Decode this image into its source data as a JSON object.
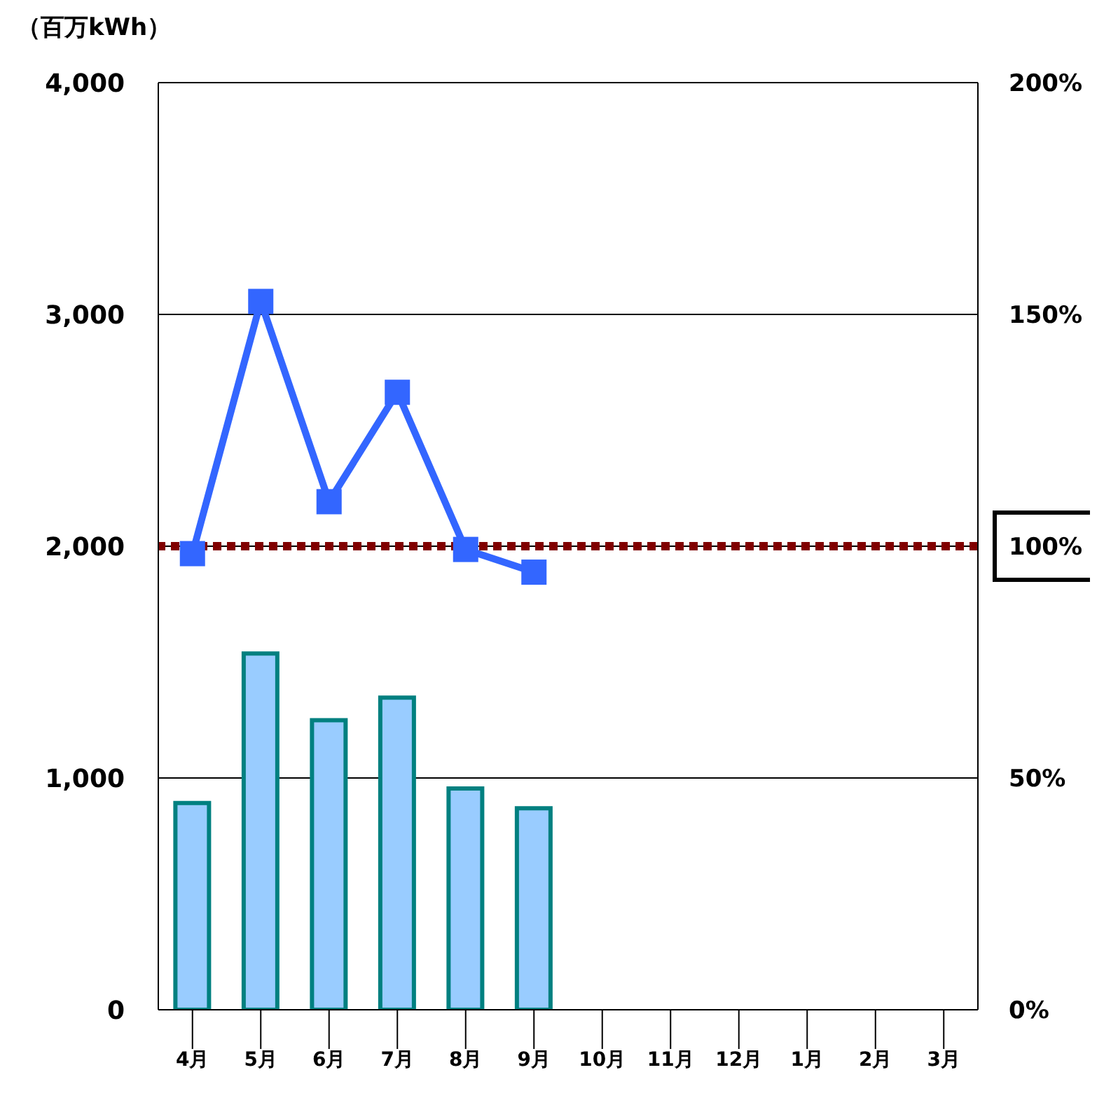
{
  "chart_data": {
    "type": "bar",
    "ylabel": "（百万kWh）",
    "categories": [
      "4月",
      "5月",
      "6月",
      "7月",
      "8月",
      "9月",
      "10月",
      "11月",
      "12月",
      "1月",
      "2月",
      "3月"
    ],
    "series": [
      {
        "color": "#99ccff",
        "values": [
          892,
          1537,
          1249,
          1347,
          955,
          869,
          null,
          null,
          null,
          null,
          null,
          null
        ]
      },
      {
        "type": "line",
        "axis": "y2",
        "color": "#3366ff",
        "values": [
          98.4,
          152.8,
          109.6,
          133.2,
          99.3,
          94.4,
          null,
          null,
          null,
          null,
          null,
          null
        ]
      }
    ],
    "ylim": [
      0,
      4000
    ],
    "yticks": [
      {
        "value": 0,
        "label": "0"
      },
      {
        "value": 1000,
        "label": "1,000"
      },
      {
        "value": 2000,
        "label": "2,000"
      },
      {
        "value": 3000,
        "label": "3,000"
      },
      {
        "value": 4000,
        "label": "4,000"
      }
    ],
    "y2lim": [
      0,
      200
    ],
    "y2ticks": [
      {
        "value": 0,
        "label": "0%"
      },
      {
        "value": 50,
        "label": "50%"
      },
      {
        "value": 100,
        "label": "100%"
      },
      {
        "value": 150,
        "label": "150%"
      },
      {
        "value": 200,
        "label": "200%"
      }
    ],
    "ref_lines": [
      {
        "axis": "y2",
        "value": 100,
        "color": "#800000",
        "line_style": "dotted"
      }
    ],
    "grid": "y",
    "legend": false,
    "marker": "square",
    "line_style": "solid"
  }
}
